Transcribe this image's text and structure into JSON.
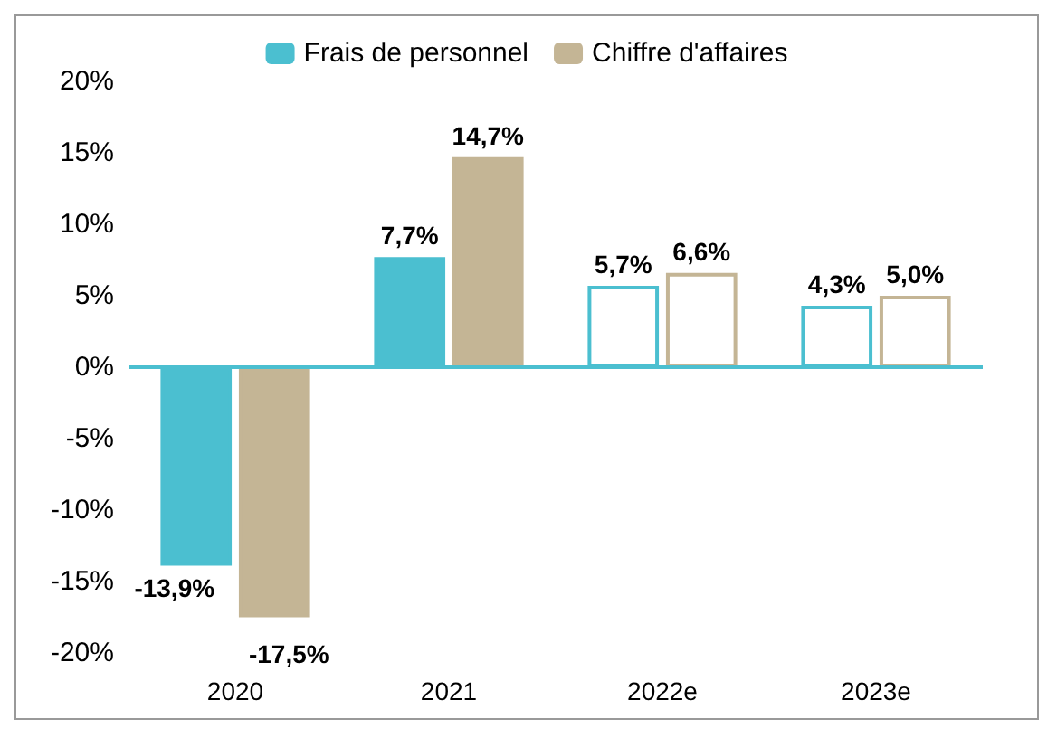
{
  "chart_data": {
    "type": "bar",
    "categories": [
      "2020",
      "2021",
      "2022e",
      "2023e"
    ],
    "series": [
      {
        "name": "Frais de personnel",
        "color": "#4bbfd0",
        "colors": [
          "#4bbfd0",
          "#4bbfd0",
          "#ffffff",
          "#ffffff"
        ],
        "values": [
          -13.9,
          7.7,
          5.7,
          4.3
        ],
        "value_labels": [
          "-13,9%",
          "7,7%",
          "5,7%",
          "4,3%"
        ]
      },
      {
        "name": "Chiffre d'affaires",
        "color": "#c4b595",
        "colors": [
          "#c4b595",
          "#c4b595",
          "#ffffff",
          "#ffffff"
        ],
        "values": [
          -17.5,
          14.7,
          6.6,
          5.0
        ],
        "value_labels": [
          "-17,5%",
          "14,7%",
          "6,6%",
          "5,0%"
        ]
      }
    ],
    "ylim": [
      -20,
      20
    ],
    "yticks": [
      {
        "value": -20,
        "label": "-20%"
      },
      {
        "value": -15,
        "label": "-15%"
      },
      {
        "value": -10,
        "label": "-10%"
      },
      {
        "value": -5,
        "label": "-5%"
      },
      {
        "value": 0,
        "label": "0%"
      },
      {
        "value": 5,
        "label": "5%"
      },
      {
        "value": 10,
        "label": "10%"
      },
      {
        "value": 15,
        "label": "15%"
      },
      {
        "value": 20,
        "label": "20%"
      }
    ],
    "ref_lines": [
      {
        "axis": "y",
        "value": 0,
        "color": "#4bbfd0"
      }
    ],
    "grid": false,
    "legend": "top"
  }
}
